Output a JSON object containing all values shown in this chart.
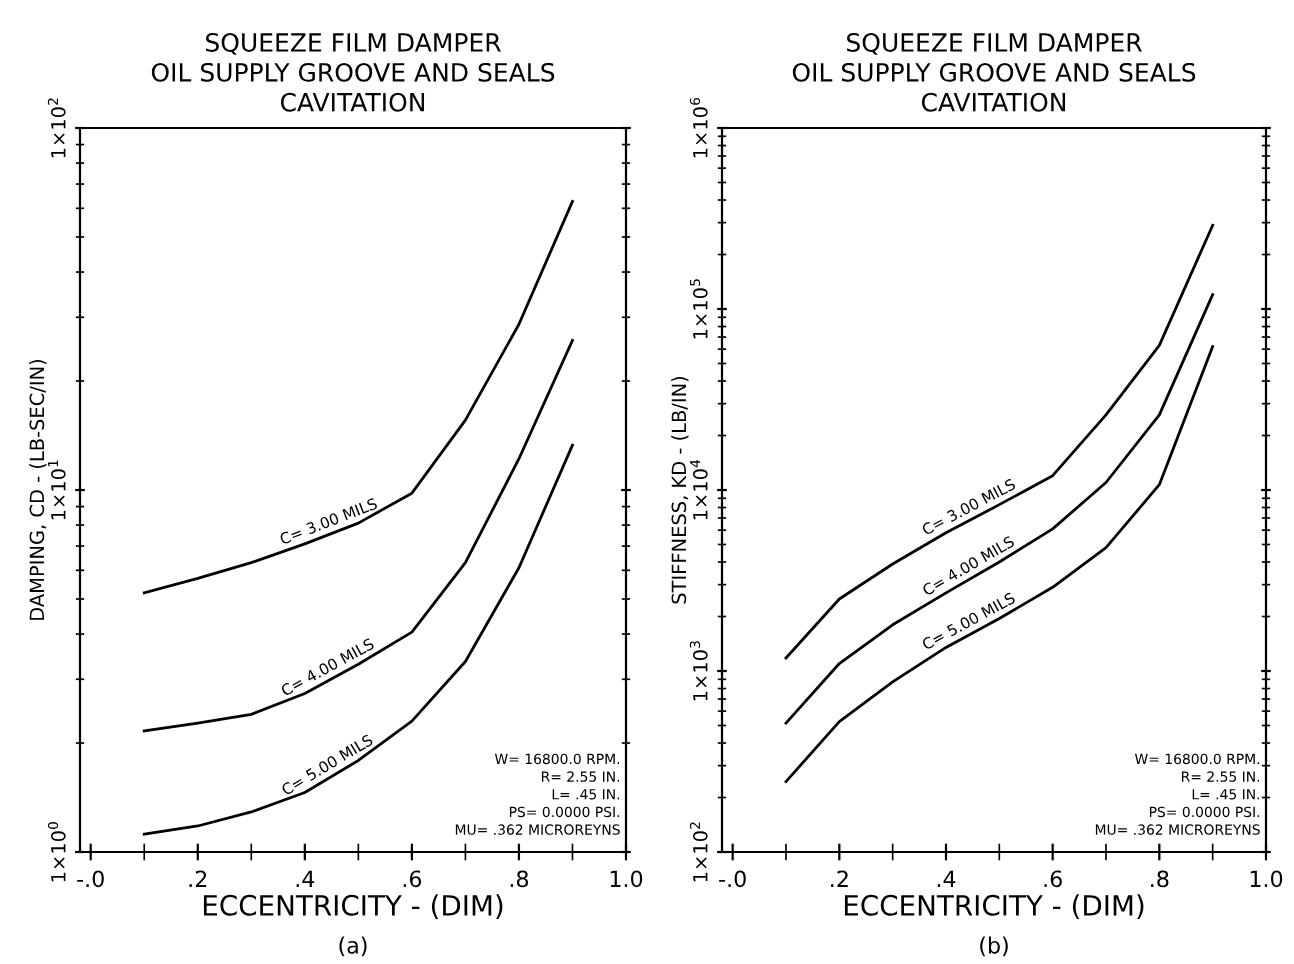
{
  "chart_data": [
    {
      "type": "line",
      "title": "SQUEEZE FILM DAMPER\nOIL SUPPLY GROOVE AND SEALS\nCAVITATION",
      "xlabel": "ECCENTRICITY - (DIM)",
      "ylabel": "DAMPING, CD - (LB-SEC/IN)",
      "log": "y",
      "x": [
        0.1,
        0.2,
        0.3,
        0.4,
        0.5,
        0.6,
        0.7,
        0.8,
        0.9
      ],
      "series": [
        {
          "name": "C= 3.00 MILS",
          "color": "#000000",
          "values": [
            5.2,
            5.7,
            6.3,
            7.1,
            8.1,
            9.8,
            15.6,
            28.7,
            62.7
          ]
        },
        {
          "name": "C= 4.00 MILS",
          "color": "#000000",
          "values": [
            2.16,
            2.27,
            2.4,
            2.74,
            3.3,
            4.05,
            6.3,
            12.2,
            25.9
          ]
        },
        {
          "name": "C= 5.00 MILS",
          "color": "#000000",
          "values": [
            1.12,
            1.18,
            1.29,
            1.46,
            1.79,
            2.3,
            3.36,
            6.1,
            13.3
          ]
        }
      ],
      "xlim": [
        -0.02,
        1.0
      ],
      "xticks": [
        {
          "value": 0.0,
          "label": "-.0"
        },
        {
          "value": 0.2,
          "label": ".2"
        },
        {
          "value": 0.4,
          "label": ".4"
        },
        {
          "value": 0.6,
          "label": ".6"
        },
        {
          "value": 0.8,
          "label": ".8"
        },
        {
          "value": 1.0,
          "label": "1.0"
        }
      ],
      "ylim": [
        1,
        100
      ],
      "yticks": [
        {
          "value": 1,
          "label": "1×10$^{0}$"
        },
        {
          "value": 10,
          "label": "1×10$^{1}$"
        },
        {
          "value": 100,
          "label": "1×10$^{2}$"
        }
      ],
      "line_style": "solid",
      "grid": false,
      "legend": false,
      "annotations": [
        "W= 16800.0 RPM.\nR= 2.55 IN.\nL= .45 IN.\nPS= 0.0000 PSI.\nMU= .362 MICROREYNS",
        "(a)"
      ]
    },
    {
      "type": "line",
      "title": "SQUEEZE FILM DAMPER\nOIL SUPPLY GROOVE AND SEALS\nCAVITATION",
      "xlabel": "ECCENTRICITY - (DIM)",
      "ylabel": "STIFFNESS, KD - (LB/IN)",
      "log": "y",
      "x": [
        0.1,
        0.2,
        0.3,
        0.4,
        0.5,
        0.6,
        0.7,
        0.8,
        0.9
      ],
      "series": [
        {
          "name": "C= 3.00 MILS",
          "color": "#000000",
          "values": [
            1180,
            2500,
            3900,
            5800,
            8300,
            12000,
            26000,
            63000,
            290000
          ]
        },
        {
          "name": "C= 4.00 MILS",
          "color": "#000000",
          "values": [
            515,
            1100,
            1800,
            2700,
            4000,
            6100,
            11000,
            26000,
            120000
          ]
        },
        {
          "name": "C= 5.00 MILS",
          "color": "#000000",
          "values": [
            245,
            525,
            870,
            1350,
            1950,
            2900,
            4800,
            10700,
            62000
          ]
        }
      ],
      "xlim": [
        -0.02,
        1.0
      ],
      "xticks": [
        {
          "value": 0.0,
          "label": "-.0"
        },
        {
          "value": 0.2,
          "label": ".2"
        },
        {
          "value": 0.4,
          "label": ".4"
        },
        {
          "value": 0.6,
          "label": ".6"
        },
        {
          "value": 0.8,
          "label": ".8"
        },
        {
          "value": 1.0,
          "label": "1.0"
        }
      ],
      "ylim": [
        100,
        1000000
      ],
      "yticks": [
        {
          "value": 100,
          "label": "1×10$^{2}$"
        },
        {
          "value": 1000,
          "label": "1×10$^{3}$"
        },
        {
          "value": 10000,
          "label": "1×10$^{4}$"
        },
        {
          "value": 100000,
          "label": "1×10$^{5}$"
        },
        {
          "value": 1000000,
          "label": "1×10$^{6}$"
        }
      ],
      "line_style": "solid",
      "grid": false,
      "legend": false,
      "annotations": [
        "W= 16800.0 RPM.\nR= 2.55 IN.\nL= .45 IN.\nPS= 0.0000 PSI.\nMU= .362 MICROREYNS",
        "(b)"
      ]
    }
  ]
}
